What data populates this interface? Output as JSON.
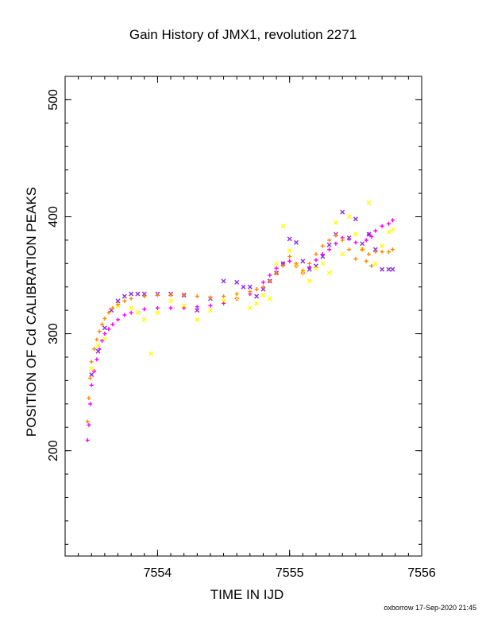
{
  "chart_data": {
    "type": "scatter",
    "title": "Gain History of JMX1, revolution 2271",
    "xlabel": "TIME IN IJD",
    "ylabel": "POSITION OF Cd CALIBRATION PEAKS",
    "xlim": [
      7553.3,
      7556.0
    ],
    "ylim": [
      110,
      520
    ],
    "xticks": [
      7554,
      7555,
      7556
    ],
    "yticks": [
      200,
      300,
      400,
      500
    ],
    "grid": false,
    "series": [
      {
        "color": "#ff00ff",
        "marker": "+",
        "x": [
          7553.47,
          7553.48,
          7553.49,
          7553.5,
          7553.52,
          7553.54,
          7553.56,
          7553.58,
          7553.6,
          7553.63,
          7553.66,
          7553.7,
          7553.75,
          7553.8,
          7553.9,
          7554.0,
          7554.1,
          7554.2,
          7554.3,
          7554.4,
          7554.5,
          7554.6,
          7554.7,
          7554.75,
          7554.8,
          7554.85,
          7554.9,
          7554.95,
          7555.0,
          7555.05,
          7555.1,
          7555.15,
          7555.2,
          7555.25,
          7555.3,
          7555.35,
          7555.4,
          7555.45,
          7555.5,
          7555.55,
          7555.58,
          7555.6,
          7555.62,
          7555.65,
          7555.7,
          7555.75,
          7555.78
        ],
        "y": [
          209,
          222,
          240,
          256,
          268,
          278,
          287,
          294,
          300,
          304,
          308,
          312,
          316,
          318,
          321,
          322,
          322,
          322,
          323,
          324,
          326,
          330,
          334,
          338,
          344,
          350,
          356,
          360,
          362,
          358,
          352,
          357,
          363,
          368,
          372,
          377,
          382,
          381,
          378,
          372,
          380,
          385,
          383,
          388,
          392,
          394,
          397
        ]
      },
      {
        "color": "#8a2be2",
        "marker": "x",
        "x": [
          7553.5,
          7553.55,
          7553.6,
          7553.65,
          7553.7,
          7553.75,
          7553.8,
          7553.85,
          7553.9,
          7554.0,
          7554.1,
          7554.2,
          7554.3,
          7554.4,
          7554.5,
          7554.6,
          7554.65,
          7554.7,
          7554.75,
          7554.8,
          7554.85,
          7554.9,
          7554.95,
          7555.0,
          7555.05,
          7555.1,
          7555.15,
          7555.2,
          7555.25,
          7555.3,
          7555.35,
          7555.4,
          7555.45,
          7555.5,
          7555.55,
          7555.6,
          7555.65,
          7555.7,
          7555.75,
          7555.78
        ],
        "y": [
          265,
          285,
          305,
          320,
          328,
          332,
          334,
          334,
          334,
          334,
          334,
          333,
          320,
          330,
          345,
          344,
          340,
          340,
          332,
          338,
          345,
          352,
          360,
          381,
          378,
          362,
          355,
          358,
          366,
          376,
          385,
          404,
          382,
          398,
          377,
          385,
          372,
          355,
          355,
          355
        ]
      },
      {
        "color": "#ffff00",
        "marker": "x",
        "x": [
          7553.5,
          7553.55,
          7553.6,
          7553.7,
          7553.8,
          7553.85,
          7553.9,
          7553.95,
          7554.0,
          7554.1,
          7554.2,
          7554.3,
          7554.4,
          7554.5,
          7554.6,
          7554.7,
          7554.75,
          7554.8,
          7554.85,
          7554.9,
          7554.95,
          7555.0,
          7555.05,
          7555.1,
          7555.15,
          7555.2,
          7555.25,
          7555.3,
          7555.35,
          7555.4,
          7555.45,
          7555.5,
          7555.55,
          7555.6,
          7555.65,
          7555.7,
          7555.75,
          7555.78
        ],
        "y": [
          270,
          290,
          296,
          324,
          322,
          318,
          312,
          283,
          318,
          328,
          324,
          312,
          320,
          328,
          330,
          322,
          326,
          333,
          330,
          360,
          392,
          371,
          358,
          352,
          345,
          356,
          360,
          352,
          395,
          368,
          400,
          385,
          372,
          412,
          360,
          375,
          387,
          389
        ]
      },
      {
        "color": "#ff8c00",
        "marker": "+",
        "x": [
          7553.47,
          7553.48,
          7553.49,
          7553.5,
          7553.52,
          7553.54,
          7553.56,
          7553.58,
          7553.6,
          7553.63,
          7553.66,
          7553.7,
          7553.75,
          7553.8,
          7553.9,
          7554.0,
          7554.1,
          7554.2,
          7554.3,
          7554.4,
          7554.5,
          7554.6,
          7554.7,
          7554.75,
          7554.8,
          7554.85,
          7554.9,
          7554.95,
          7555.0,
          7555.05,
          7555.1,
          7555.15,
          7555.2,
          7555.25,
          7555.3,
          7555.35,
          7555.4,
          7555.45,
          7555.5,
          7555.55,
          7555.58,
          7555.6,
          7555.62,
          7555.65,
          7555.7,
          7555.75,
          7555.78
        ],
        "y": [
          225,
          245,
          262,
          276,
          287,
          295,
          302,
          308,
          313,
          318,
          322,
          325,
          328,
          330,
          332,
          333,
          333,
          333,
          332,
          331,
          332,
          334,
          336,
          338,
          340,
          345,
          352,
          358,
          366,
          360,
          354,
          360,
          368,
          375,
          380,
          384,
          380,
          372,
          364,
          372,
          362,
          368,
          358,
          370,
          370,
          370,
          372
        ]
      }
    ]
  },
  "footer": "oxborrow 17-Sep-2020 21:45"
}
